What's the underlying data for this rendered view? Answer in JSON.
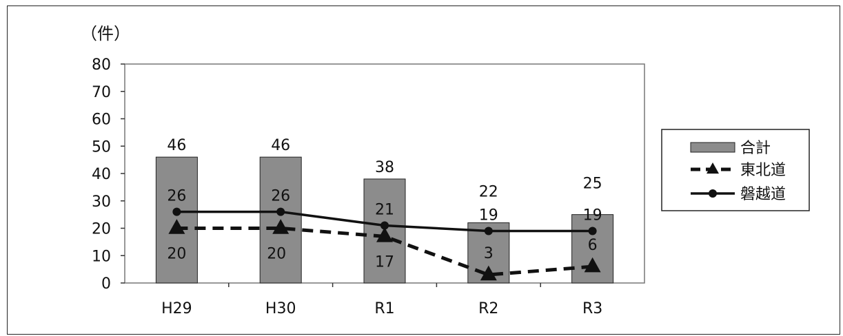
{
  "chart_data": {
    "type": "bar",
    "unit_label": "（件）",
    "categories": [
      "H29",
      "H30",
      "R1",
      "R2",
      "R3"
    ],
    "ylim": [
      0,
      80
    ],
    "yticks": [
      0,
      10,
      20,
      30,
      40,
      50,
      60,
      70,
      80
    ],
    "grid": false,
    "legend_position": "right",
    "series": [
      {
        "name": "合計",
        "kind": "bar",
        "values": [
          46,
          46,
          38,
          22,
          25
        ],
        "color": "#8c8c8c",
        "labels": [
          "46",
          "46",
          "38",
          "22",
          "25"
        ]
      },
      {
        "name": "東北道",
        "kind": "line",
        "style": "dashed",
        "marker": "triangle",
        "values": [
          20,
          20,
          17,
          3,
          6
        ],
        "color": "#111111",
        "labels": [
          "20",
          "20",
          "17",
          "3",
          "6"
        ]
      },
      {
        "name": "磐越道",
        "kind": "line",
        "style": "solid",
        "marker": "circle",
        "values": [
          26,
          26,
          21,
          19,
          19
        ],
        "color": "#111111",
        "labels": [
          "26",
          "26",
          "21",
          "19",
          "19"
        ]
      }
    ]
  }
}
